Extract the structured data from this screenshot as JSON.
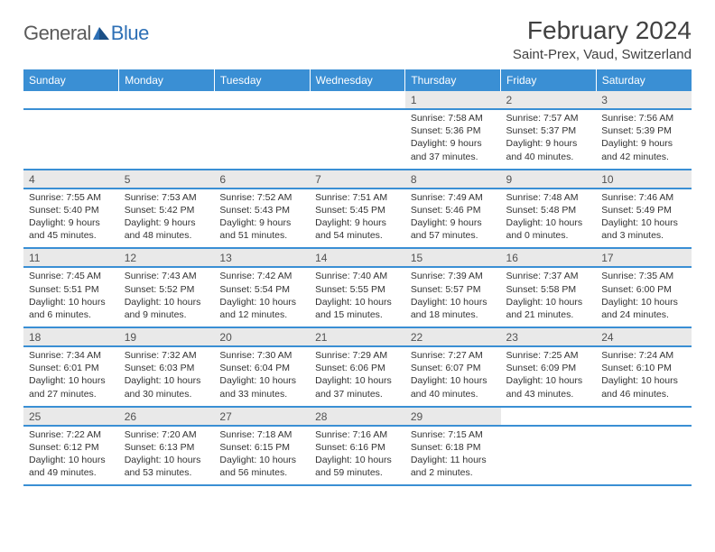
{
  "brand": {
    "general": "General",
    "blue": "Blue"
  },
  "title": "February 2024",
  "location": "Saint-Prex, Vaud, Switzerland",
  "colors": {
    "header_bg": "#3a8fd4",
    "daynum_bg": "#e9e9e9",
    "border": "#3a8fd4"
  },
  "weekdays": [
    "Sunday",
    "Monday",
    "Tuesday",
    "Wednesday",
    "Thursday",
    "Friday",
    "Saturday"
  ],
  "weeks": [
    [
      null,
      null,
      null,
      null,
      {
        "n": "1",
        "sr": "7:58 AM",
        "ss": "5:36 PM",
        "dl": "9 hours and 37 minutes."
      },
      {
        "n": "2",
        "sr": "7:57 AM",
        "ss": "5:37 PM",
        "dl": "9 hours and 40 minutes."
      },
      {
        "n": "3",
        "sr": "7:56 AM",
        "ss": "5:39 PM",
        "dl": "9 hours and 42 minutes."
      }
    ],
    [
      {
        "n": "4",
        "sr": "7:55 AM",
        "ss": "5:40 PM",
        "dl": "9 hours and 45 minutes."
      },
      {
        "n": "5",
        "sr": "7:53 AM",
        "ss": "5:42 PM",
        "dl": "9 hours and 48 minutes."
      },
      {
        "n": "6",
        "sr": "7:52 AM",
        "ss": "5:43 PM",
        "dl": "9 hours and 51 minutes."
      },
      {
        "n": "7",
        "sr": "7:51 AM",
        "ss": "5:45 PM",
        "dl": "9 hours and 54 minutes."
      },
      {
        "n": "8",
        "sr": "7:49 AM",
        "ss": "5:46 PM",
        "dl": "9 hours and 57 minutes."
      },
      {
        "n": "9",
        "sr": "7:48 AM",
        "ss": "5:48 PM",
        "dl": "10 hours and 0 minutes."
      },
      {
        "n": "10",
        "sr": "7:46 AM",
        "ss": "5:49 PM",
        "dl": "10 hours and 3 minutes."
      }
    ],
    [
      {
        "n": "11",
        "sr": "7:45 AM",
        "ss": "5:51 PM",
        "dl": "10 hours and 6 minutes."
      },
      {
        "n": "12",
        "sr": "7:43 AM",
        "ss": "5:52 PM",
        "dl": "10 hours and 9 minutes."
      },
      {
        "n": "13",
        "sr": "7:42 AM",
        "ss": "5:54 PM",
        "dl": "10 hours and 12 minutes."
      },
      {
        "n": "14",
        "sr": "7:40 AM",
        "ss": "5:55 PM",
        "dl": "10 hours and 15 minutes."
      },
      {
        "n": "15",
        "sr": "7:39 AM",
        "ss": "5:57 PM",
        "dl": "10 hours and 18 minutes."
      },
      {
        "n": "16",
        "sr": "7:37 AM",
        "ss": "5:58 PM",
        "dl": "10 hours and 21 minutes."
      },
      {
        "n": "17",
        "sr": "7:35 AM",
        "ss": "6:00 PM",
        "dl": "10 hours and 24 minutes."
      }
    ],
    [
      {
        "n": "18",
        "sr": "7:34 AM",
        "ss": "6:01 PM",
        "dl": "10 hours and 27 minutes."
      },
      {
        "n": "19",
        "sr": "7:32 AM",
        "ss": "6:03 PM",
        "dl": "10 hours and 30 minutes."
      },
      {
        "n": "20",
        "sr": "7:30 AM",
        "ss": "6:04 PM",
        "dl": "10 hours and 33 minutes."
      },
      {
        "n": "21",
        "sr": "7:29 AM",
        "ss": "6:06 PM",
        "dl": "10 hours and 37 minutes."
      },
      {
        "n": "22",
        "sr": "7:27 AM",
        "ss": "6:07 PM",
        "dl": "10 hours and 40 minutes."
      },
      {
        "n": "23",
        "sr": "7:25 AM",
        "ss": "6:09 PM",
        "dl": "10 hours and 43 minutes."
      },
      {
        "n": "24",
        "sr": "7:24 AM",
        "ss": "6:10 PM",
        "dl": "10 hours and 46 minutes."
      }
    ],
    [
      {
        "n": "25",
        "sr": "7:22 AM",
        "ss": "6:12 PM",
        "dl": "10 hours and 49 minutes."
      },
      {
        "n": "26",
        "sr": "7:20 AM",
        "ss": "6:13 PM",
        "dl": "10 hours and 53 minutes."
      },
      {
        "n": "27",
        "sr": "7:18 AM",
        "ss": "6:15 PM",
        "dl": "10 hours and 56 minutes."
      },
      {
        "n": "28",
        "sr": "7:16 AM",
        "ss": "6:16 PM",
        "dl": "10 hours and 59 minutes."
      },
      {
        "n": "29",
        "sr": "7:15 AM",
        "ss": "6:18 PM",
        "dl": "11 hours and 2 minutes."
      },
      null,
      null
    ]
  ],
  "labels": {
    "sunrise": "Sunrise:",
    "sunset": "Sunset:",
    "daylight": "Daylight:"
  }
}
